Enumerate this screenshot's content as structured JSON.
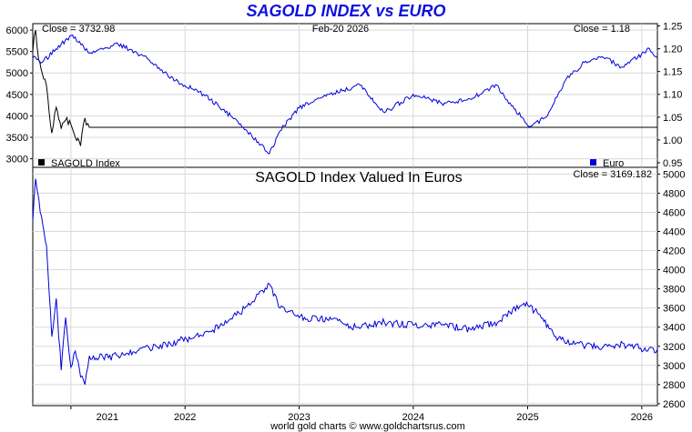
{
  "title": "SAGOLD INDEX vs EURO",
  "footer": "world gold charts © www.goldchartsrus.com",
  "chart_data": [
    {
      "type": "line",
      "date_label": "Feb-20  2026",
      "close_left": "Close = 3732.98",
      "close_right": "Close = 1.18",
      "x_ticks": [
        "2021",
        "2022",
        "2023",
        "2024",
        "2025",
        "2026"
      ],
      "y_left_ticks": [
        "6000",
        "5500",
        "5000",
        "4500",
        "4000",
        "3500",
        "3000"
      ],
      "y_left_range": [
        2800,
        6150
      ],
      "y_right_ticks": [
        "1.25",
        "1.20",
        "1.15",
        "1.10",
        "1.05",
        "1.00",
        "0.95"
      ],
      "y_right_range": [
        0.94,
        1.255
      ],
      "grid": true,
      "series": [
        {
          "name": "SAGOLD Index",
          "color": "#000000",
          "axis": "left",
          "x": [
            "2020-09-01",
            "2020-09-10",
            "2020-09-20",
            "2020-10-01",
            "2020-10-15",
            "2020-11-01",
            "2020-11-15",
            "2020-12-01",
            "2020-12-15",
            "2021-01-01",
            "2021-01-15",
            "2021-02-01",
            "2021-02-15",
            "2021-03-01",
            "2026-02-20"
          ],
          "y": [
            5500,
            6000,
            5300,
            5000,
            4700,
            3600,
            4200,
            3700,
            3900,
            3800,
            3500,
            3300,
            3950,
            3732.98,
            3732.98
          ]
        },
        {
          "name": "Euro",
          "color": "#0000dd",
          "axis": "right",
          "x": [
            "2020-09-01",
            "2020-10-01",
            "2020-12-01",
            "2021-01-06",
            "2021-03-01",
            "2021-06-01",
            "2021-09-01",
            "2021-12-01",
            "2022-03-01",
            "2022-06-01",
            "2022-09-01",
            "2022-09-28",
            "2022-11-01",
            "2023-01-01",
            "2023-04-01",
            "2023-07-15",
            "2023-10-01",
            "2024-01-01",
            "2024-04-01",
            "2024-07-01",
            "2024-09-25",
            "2024-11-01",
            "2025-01-10",
            "2025-03-01",
            "2025-05-01",
            "2025-07-01",
            "2025-09-01",
            "2025-11-01",
            "2026-01-26",
            "2026-02-20"
          ],
          "y": [
            1.18,
            1.17,
            1.21,
            1.23,
            1.19,
            1.21,
            1.18,
            1.13,
            1.1,
            1.05,
            0.99,
            0.97,
            1.02,
            1.07,
            1.1,
            1.12,
            1.06,
            1.1,
            1.08,
            1.09,
            1.12,
            1.08,
            1.03,
            1.05,
            1.13,
            1.17,
            1.18,
            1.16,
            1.2,
            1.18
          ]
        }
      ],
      "legend": "bottom"
    },
    {
      "type": "line",
      "title": "SAGOLD Index Valued In Euros",
      "close": "Close = 3169.182",
      "x_ticks": [
        "2021",
        "2022",
        "2023",
        "2024",
        "2025",
        "2026"
      ],
      "y_ticks": [
        "5000",
        "4800",
        "4600",
        "4400",
        "4200",
        "4000",
        "3800",
        "3600",
        "3400",
        "3200",
        "3000",
        "2800",
        "2600"
      ],
      "y_range": [
        2580,
        5070
      ],
      "grid": true,
      "series": [
        {
          "name": "SAGOLD Index Valued In Euros",
          "color": "#0000dd",
          "x": [
            "2020-09-01",
            "2020-09-10",
            "2020-09-25",
            "2020-10-15",
            "2020-11-01",
            "2020-11-15",
            "2020-12-01",
            "2020-12-15",
            "2021-01-01",
            "2021-01-15",
            "2021-02-01",
            "2021-02-15",
            "2021-03-01",
            "2021-05-01",
            "2021-08-01",
            "2021-11-01",
            "2022-02-01",
            "2022-05-01",
            "2022-08-01",
            "2022-09-28",
            "2022-11-01",
            "2023-01-01",
            "2023-04-01",
            "2023-07-01",
            "2023-10-01",
            "2024-01-01",
            "2024-04-01",
            "2024-07-01",
            "2024-10-01",
            "2024-12-20",
            "2025-02-01",
            "2025-04-01",
            "2025-06-01",
            "2025-09-01",
            "2025-12-01",
            "2026-01-20",
            "2026-02-20"
          ],
          "y": [
            4500,
            4950,
            4600,
            4250,
            3300,
            3700,
            2950,
            3500,
            2980,
            3150,
            2880,
            2800,
            3100,
            3080,
            3150,
            3220,
            3300,
            3420,
            3650,
            3850,
            3600,
            3500,
            3480,
            3400,
            3450,
            3420,
            3420,
            3380,
            3460,
            3650,
            3550,
            3300,
            3220,
            3200,
            3220,
            3150,
            3169.182
          ]
        }
      ]
    }
  ]
}
